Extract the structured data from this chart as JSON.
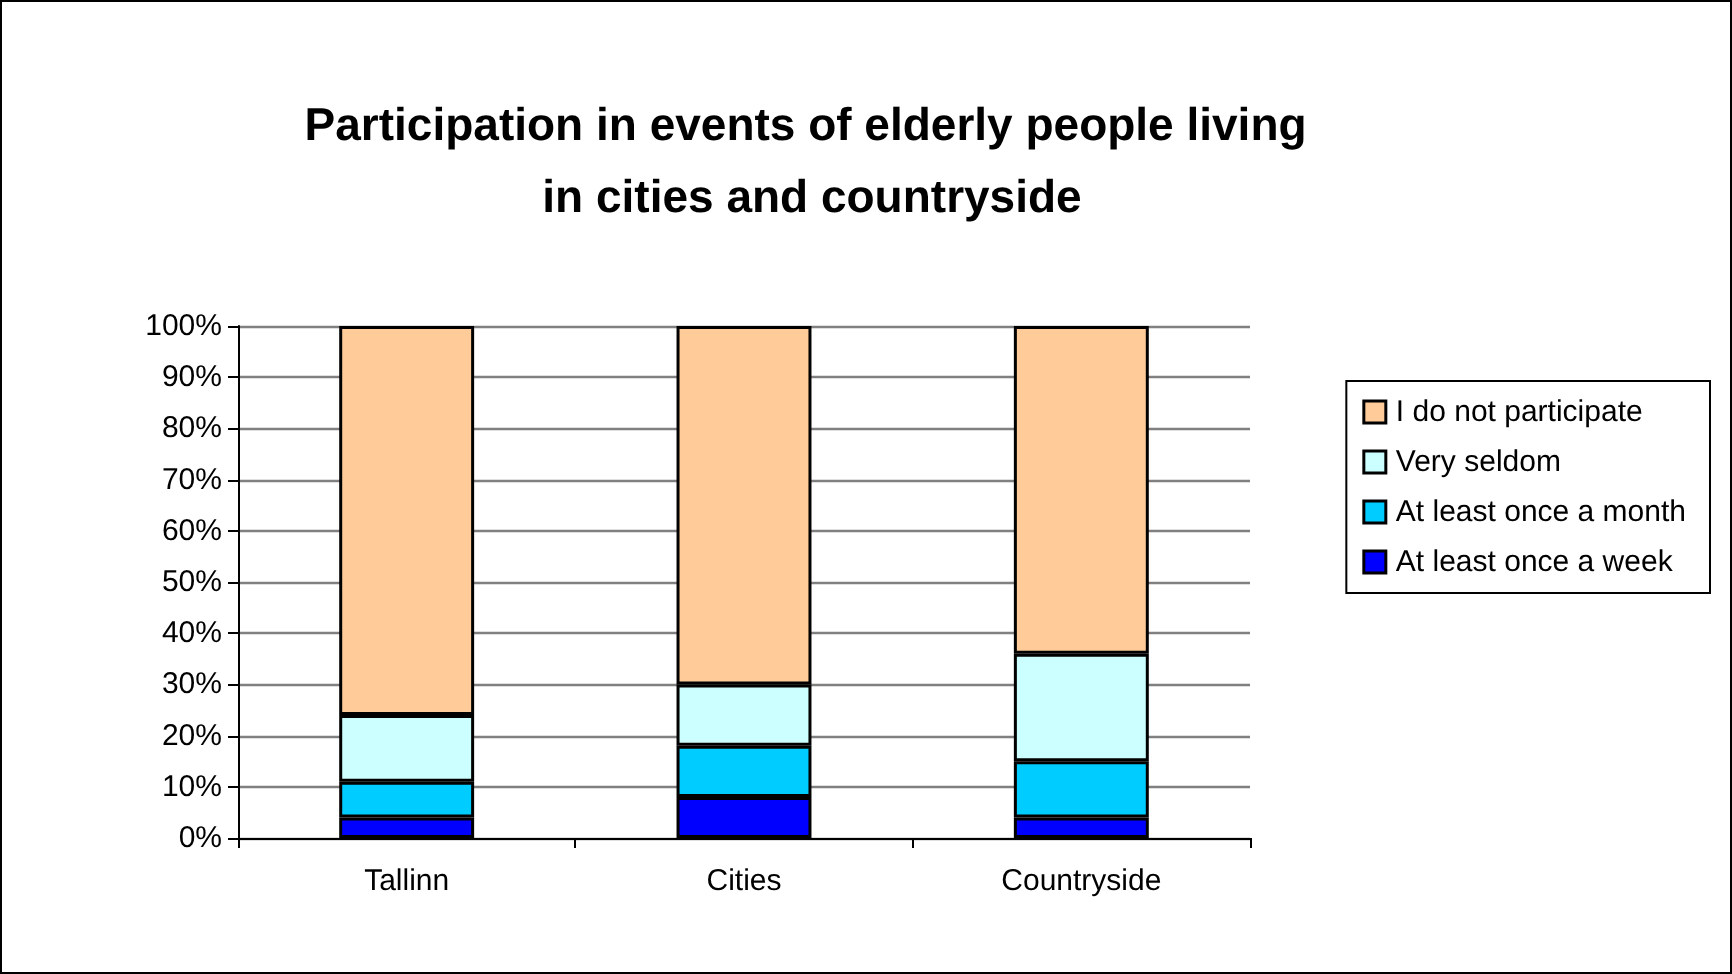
{
  "chart_data": {
    "type": "bar",
    "title": "Participation in events of elderly people living in cities and countryside",
    "categories": [
      "Tallinn",
      "Cities",
      "Countryside"
    ],
    "stacked": true,
    "series": [
      {
        "name": "At least once a week",
        "color": "#0000ff",
        "values": [
          4,
          8,
          4
        ]
      },
      {
        "name": "At least once a month",
        "color": "#00ccff",
        "values": [
          7,
          10,
          11
        ]
      },
      {
        "name": "Very seldom",
        "color": "#ccffff",
        "values": [
          13,
          12,
          21
        ]
      },
      {
        "name": "I do not participate",
        "color": "#ffcc99",
        "values": [
          76,
          70,
          64
        ]
      }
    ],
    "ylim": [
      0,
      100
    ],
    "yticks": [
      {
        "value": 0,
        "label": "0%"
      },
      {
        "value": 10,
        "label": "10%"
      },
      {
        "value": 20,
        "label": "20%"
      },
      {
        "value": 30,
        "label": "30%"
      },
      {
        "value": 40,
        "label": "40%"
      },
      {
        "value": 50,
        "label": "50%"
      },
      {
        "value": 60,
        "label": "60%"
      },
      {
        "value": 70,
        "label": "70%"
      },
      {
        "value": 80,
        "label": "80%"
      },
      {
        "value": 90,
        "label": "90%"
      },
      {
        "value": 100,
        "label": "100%"
      }
    ],
    "grid": "y",
    "legend": "right"
  }
}
